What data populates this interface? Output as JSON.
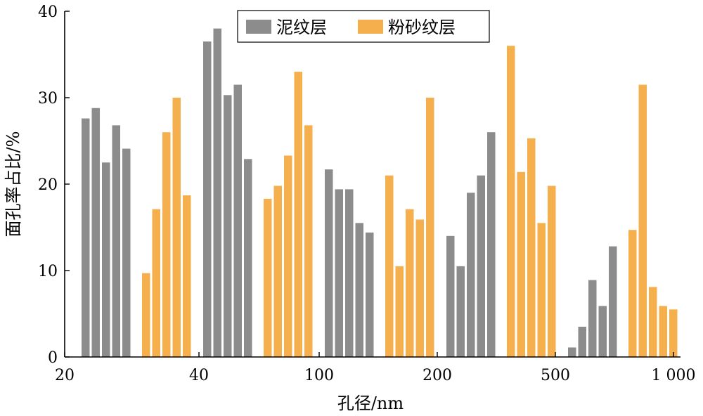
{
  "chart_data": {
    "type": "bar",
    "title": "",
    "xlabel": "孔径/nm",
    "ylabel": "面孔率占比/%",
    "ylim": [
      0,
      40
    ],
    "yticks": [
      0,
      10,
      20,
      30,
      40
    ],
    "xticks": [
      "20",
      "40",
      "100",
      "200",
      "500",
      "1 000"
    ],
    "grid": false,
    "legend_position": "top-center",
    "series": [
      {
        "name": "泥纹层",
        "color": "#8c8c8c",
        "groups": [
          [
            27.6,
            28.8,
            22.5,
            26.8,
            24.1
          ],
          [
            36.5,
            38.0,
            30.3,
            31.5,
            22.9
          ],
          [
            21.7,
            19.4,
            19.4,
            15.5,
            14.4
          ],
          [
            14.0,
            10.5,
            19.0,
            21.0,
            26.0
          ],
          [
            1.1,
            3.5,
            8.9,
            5.9,
            12.8
          ]
        ]
      },
      {
        "name": "粉砂纹层",
        "color": "#f5b04d",
        "groups": [
          [
            9.7,
            17.1,
            26.0,
            30.0,
            18.7
          ],
          [
            18.3,
            19.8,
            23.3,
            33.0,
            26.8
          ],
          [
            21.0,
            10.5,
            17.1,
            15.9,
            30.0
          ],
          [
            36.0,
            21.4,
            25.3,
            15.5,
            19.8
          ],
          [
            14.7,
            31.5,
            8.1,
            5.9,
            5.5
          ]
        ]
      }
    ]
  }
}
